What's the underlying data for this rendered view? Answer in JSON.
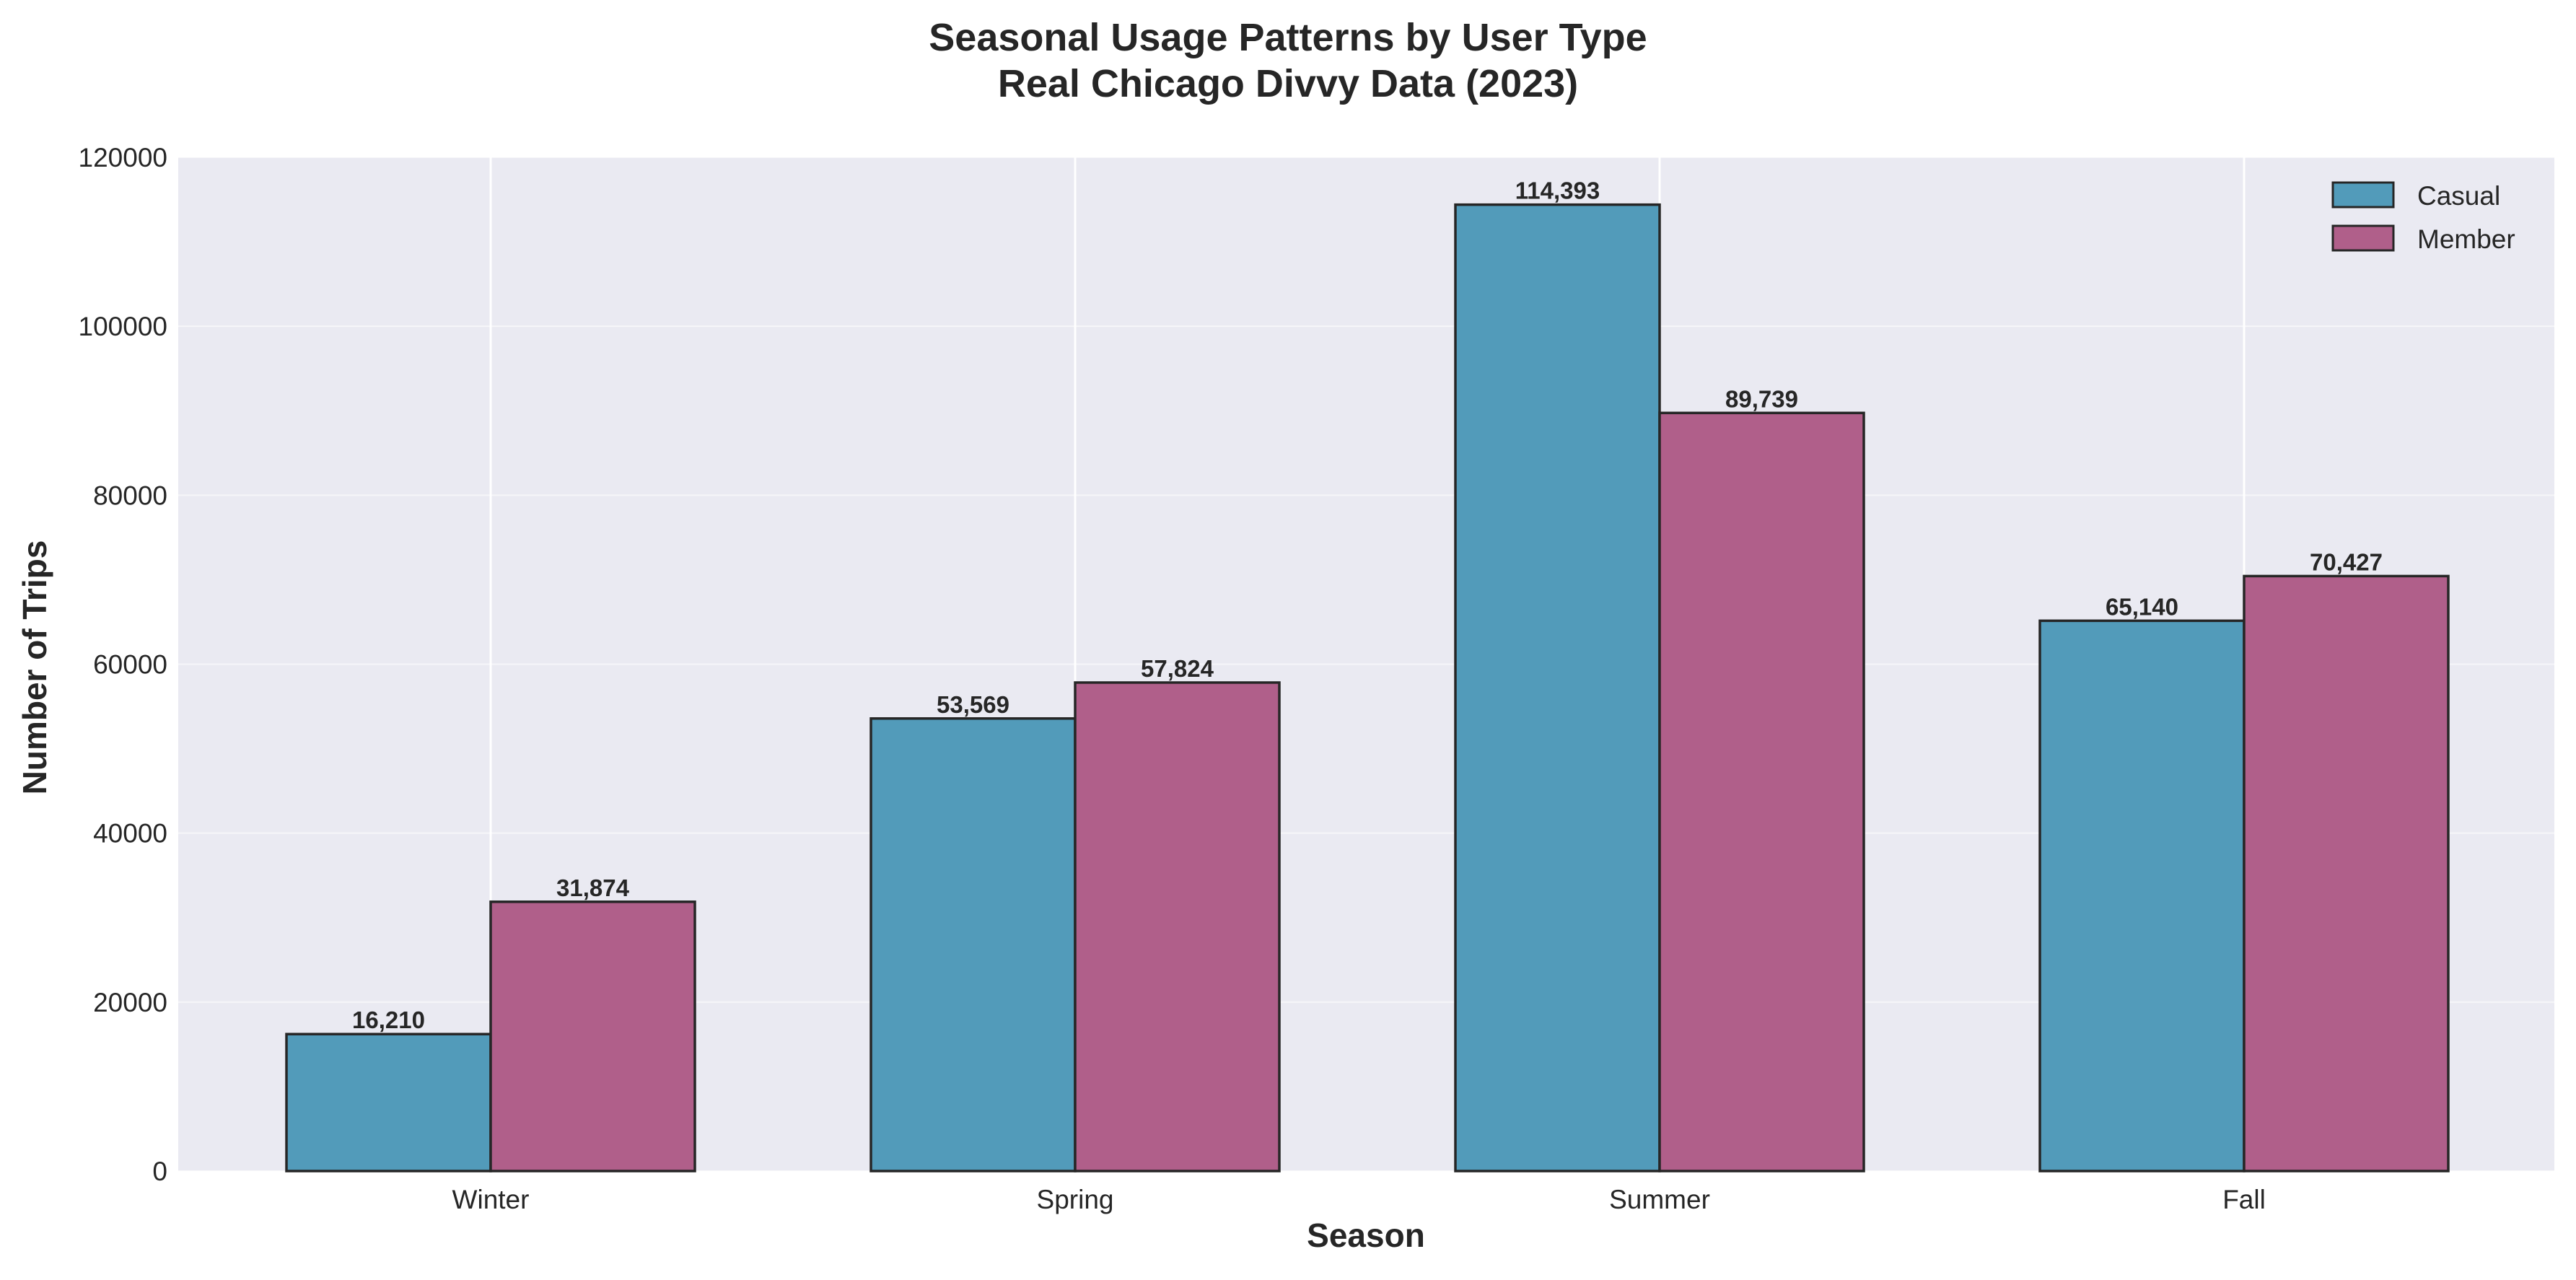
{
  "chart_data": {
    "type": "bar",
    "title": "Seasonal Usage Patterns by User Type",
    "subtitle": "Real Chicago Divvy Data (2023)",
    "xlabel": "Season",
    "ylabel": "Number of Trips",
    "categories": [
      "Winter",
      "Spring",
      "Summer",
      "Fall"
    ],
    "series": [
      {
        "name": "Casual",
        "values": [
          16210,
          53569,
          114393,
          65140
        ],
        "labels": [
          "16,210",
          "53,569",
          "114,393",
          "65,140"
        ],
        "color": "#529BBA"
      },
      {
        "name": "Member",
        "values": [
          31874,
          57824,
          89739,
          70427
        ],
        "labels": [
          "31,874",
          "57,824",
          "89,739",
          "70,427"
        ],
        "color": "#B05F8A"
      }
    ],
    "ylim": [
      0,
      120000
    ],
    "yticks": [
      0,
      20000,
      40000,
      60000,
      80000,
      100000,
      120000
    ],
    "ytick_labels": [
      "0",
      "20000",
      "40000",
      "60000",
      "80000",
      "100000",
      "120000"
    ],
    "grid": true,
    "legend_position": "top-right",
    "background_color": "#EAEAF2",
    "grid_color": "#FFFFFF",
    "bar_edge_color": "#262626"
  }
}
